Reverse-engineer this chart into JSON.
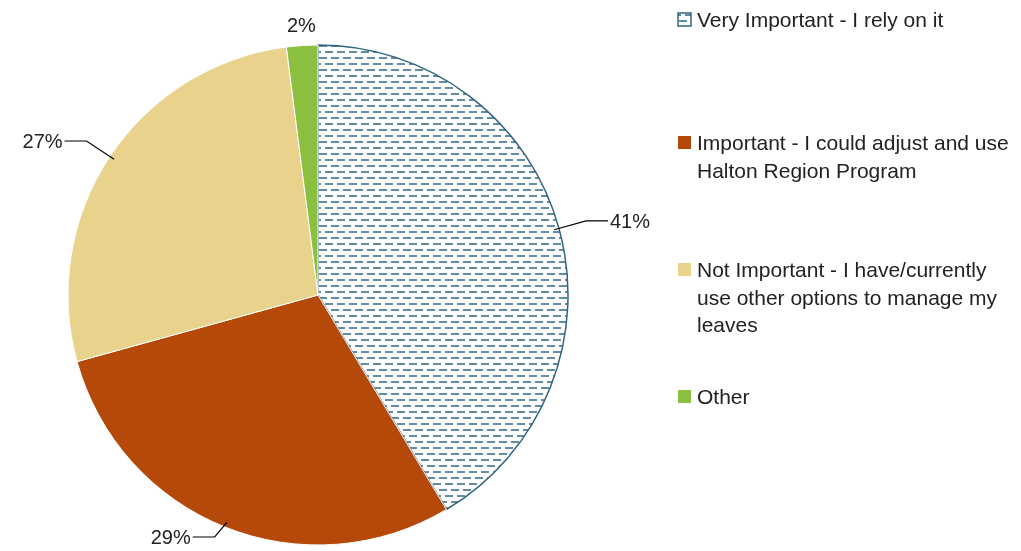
{
  "chart_data": {
    "type": "pie",
    "categories": [
      "Very Important - I rely on it",
      "Important - I could adjust and use Halton Region Program",
      "Not Important - I have/currently use other options to manage my leaves",
      "Other"
    ],
    "values": [
      41,
      29,
      27,
      2
    ],
    "colors": [
      "#2f6580",
      "#b5490a",
      "#e9d28c",
      "#8bbf40"
    ],
    "value_labels": [
      "41%",
      "29%",
      "27%",
      "2%"
    ],
    "legend": "right"
  }
}
